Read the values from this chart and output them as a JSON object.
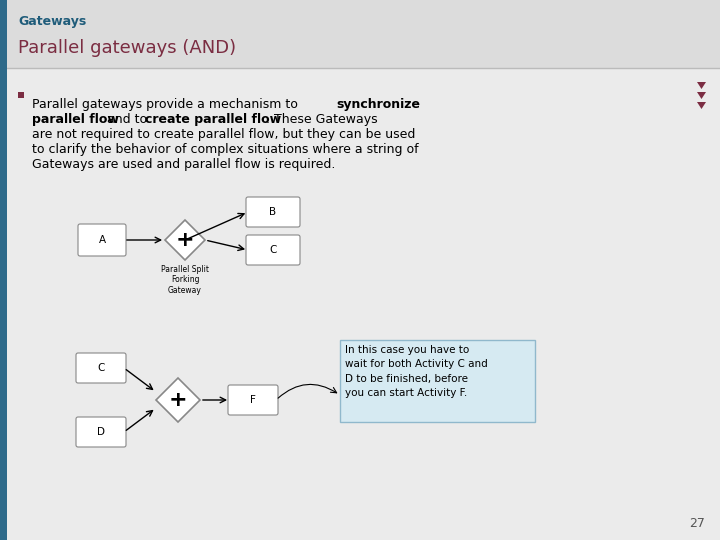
{
  "title_small": "Gateways",
  "title_large": "Parallel gateways (AND)",
  "title_small_color": "#1F5C7A",
  "title_large_color": "#7B2D42",
  "header_bg_color": "#DCDCDC",
  "body_bg_color": "#EBEBEB",
  "left_bar_color": "#2E6A8A",
  "bullet_color": "#7B2D42",
  "page_number": "27",
  "annotation_box_color": "#D6EAF2",
  "annotation_border_color": "#90B8CC",
  "annotation_text": "In this case you have to\nwait for both Activity C and\nD to be finished, before\nyou can start Activity F."
}
